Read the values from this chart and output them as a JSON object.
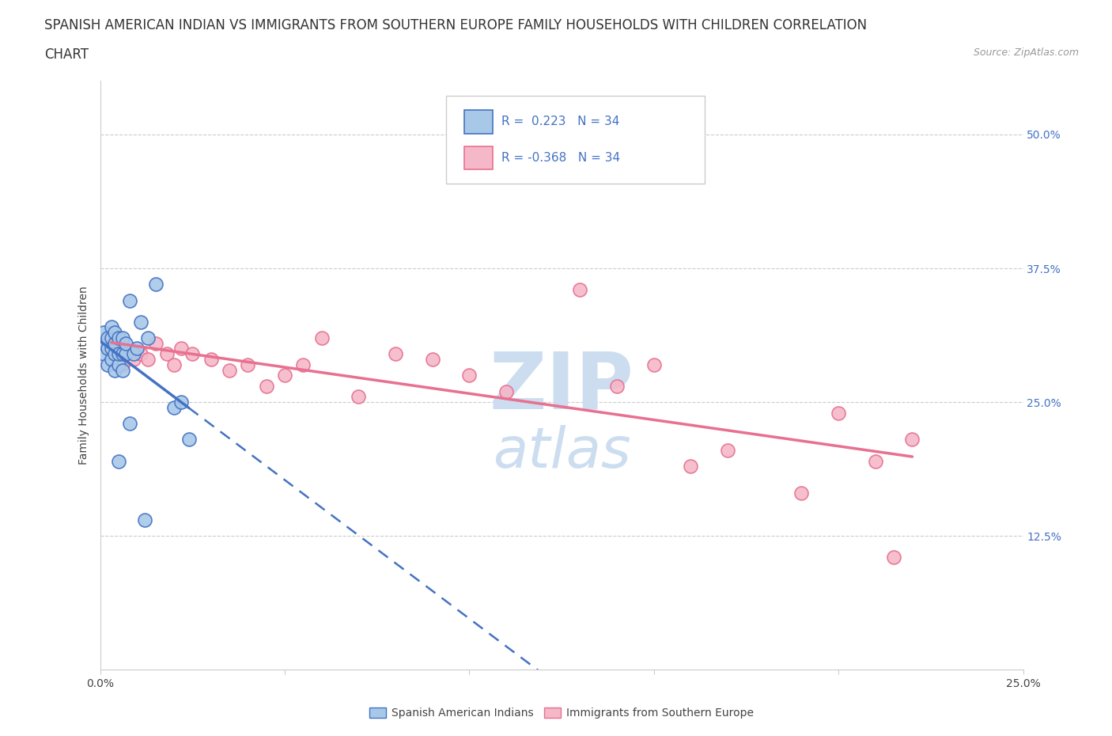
{
  "title_line1": "SPANISH AMERICAN INDIAN VS IMMIGRANTS FROM SOUTHERN EUROPE FAMILY HOUSEHOLDS WITH CHILDREN CORRELATION",
  "title_line2": "CHART",
  "source": "Source: ZipAtlas.com",
  "ylabel": "Family Households with Children",
  "xlim": [
    0.0,
    0.25
  ],
  "ylim": [
    0.0,
    0.55
  ],
  "R1": 0.223,
  "N1": 34,
  "R2": -0.368,
  "N2": 34,
  "blue_color": "#a8c8e8",
  "pink_color": "#f4b8c8",
  "line_blue": "#4472c4",
  "line_pink": "#e87090",
  "scatter_blue": {
    "x": [
      0.001,
      0.001,
      0.001,
      0.002,
      0.002,
      0.002,
      0.003,
      0.003,
      0.003,
      0.003,
      0.004,
      0.004,
      0.004,
      0.004,
      0.005,
      0.005,
      0.005,
      0.006,
      0.006,
      0.006,
      0.007,
      0.007,
      0.008,
      0.009,
      0.01,
      0.011,
      0.013,
      0.015,
      0.02,
      0.022,
      0.024,
      0.008,
      0.005,
      0.012
    ],
    "y": [
      0.295,
      0.305,
      0.315,
      0.285,
      0.3,
      0.31,
      0.29,
      0.3,
      0.31,
      0.32,
      0.28,
      0.295,
      0.305,
      0.315,
      0.285,
      0.295,
      0.31,
      0.28,
      0.295,
      0.31,
      0.295,
      0.305,
      0.345,
      0.295,
      0.3,
      0.325,
      0.31,
      0.36,
      0.245,
      0.25,
      0.215,
      0.23,
      0.195,
      0.14
    ]
  },
  "scatter_pink": {
    "x": [
      0.003,
      0.005,
      0.006,
      0.007,
      0.009,
      0.011,
      0.013,
      0.015,
      0.018,
      0.02,
      0.022,
      0.025,
      0.03,
      0.035,
      0.04,
      0.045,
      0.05,
      0.055,
      0.06,
      0.07,
      0.08,
      0.09,
      0.1,
      0.11,
      0.13,
      0.14,
      0.15,
      0.16,
      0.17,
      0.19,
      0.2,
      0.21,
      0.215,
      0.22
    ],
    "y": [
      0.295,
      0.3,
      0.285,
      0.295,
      0.29,
      0.295,
      0.29,
      0.305,
      0.295,
      0.285,
      0.3,
      0.295,
      0.29,
      0.28,
      0.285,
      0.265,
      0.275,
      0.285,
      0.31,
      0.255,
      0.295,
      0.29,
      0.275,
      0.26,
      0.355,
      0.265,
      0.285,
      0.19,
      0.205,
      0.165,
      0.24,
      0.195,
      0.105,
      0.215
    ]
  },
  "watermark_color": "#ccddf0",
  "legend_label1": "Spanish American Indians",
  "legend_label2": "Immigrants from Southern Europe",
  "title_fontsize": 12,
  "axis_label_fontsize": 10,
  "tick_fontsize": 10
}
